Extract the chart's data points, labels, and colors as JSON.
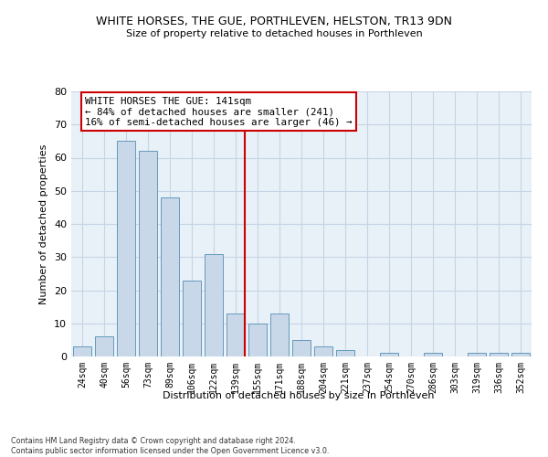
{
  "title": "WHITE HORSES, THE GUE, PORTHLEVEN, HELSTON, TR13 9DN",
  "subtitle": "Size of property relative to detached houses in Porthleven",
  "xlabel": "Distribution of detached houses by size in Porthleven",
  "ylabel": "Number of detached properties",
  "categories": [
    "24sqm",
    "40sqm",
    "56sqm",
    "73sqm",
    "89sqm",
    "106sqm",
    "122sqm",
    "139sqm",
    "155sqm",
    "171sqm",
    "188sqm",
    "204sqm",
    "221sqm",
    "237sqm",
    "254sqm",
    "270sqm",
    "286sqm",
    "303sqm",
    "319sqm",
    "336sqm",
    "352sqm"
  ],
  "values": [
    3,
    6,
    65,
    62,
    48,
    23,
    31,
    13,
    10,
    13,
    5,
    3,
    2,
    0,
    1,
    0,
    1,
    0,
    1,
    1,
    1
  ],
  "bar_color": "#c8d8e8",
  "bar_edge_color": "#6699bb",
  "marker_bin_index": 7,
  "vline_color": "#cc0000",
  "annotation_text_line1": "WHITE HORSES THE GUE: 141sqm",
  "annotation_text_line2": "← 84% of detached houses are smaller (241)",
  "annotation_text_line3": "16% of semi-detached houses are larger (46) →",
  "grid_color": "#c5d5e5",
  "background_color": "#e8f0f8",
  "ylim": [
    0,
    80
  ],
  "yticks": [
    0,
    10,
    20,
    30,
    40,
    50,
    60,
    70,
    80
  ],
  "footer_line1": "Contains HM Land Registry data © Crown copyright and database right 2024.",
  "footer_line2": "Contains public sector information licensed under the Open Government Licence v3.0."
}
